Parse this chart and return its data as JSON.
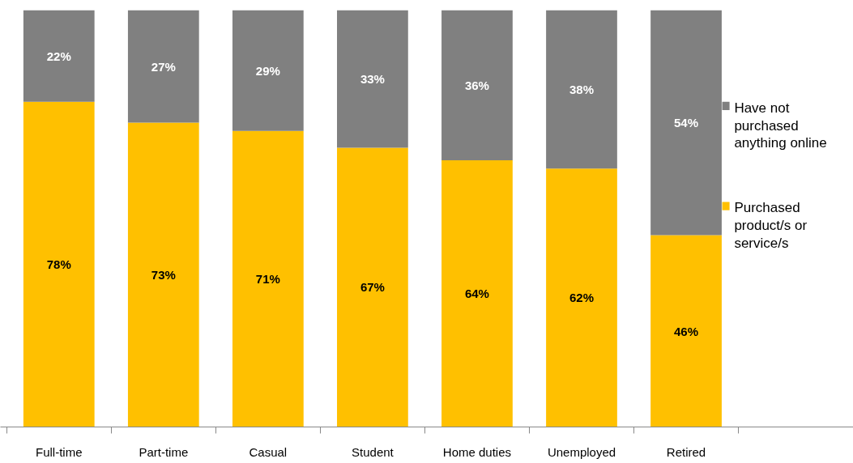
{
  "chart_data": {
    "type": "bar",
    "stacked": true,
    "categories": [
      "Full-time",
      "Part-time",
      "Casual",
      "Student",
      "Home duties",
      "Unemployed",
      "Retired"
    ],
    "series": [
      {
        "name": "Purchased product/s or service/s",
        "color": "#ffc000",
        "values": [
          78,
          73,
          71,
          67,
          64,
          62,
          46
        ],
        "value_labels": [
          "78%",
          "73%",
          "71%",
          "67%",
          "64%",
          "62%",
          "46%"
        ]
      },
      {
        "name": "Have not purchased anything online",
        "color": "#808080",
        "values": [
          22,
          27,
          29,
          33,
          36,
          38,
          54
        ],
        "value_labels": [
          "22%",
          "27%",
          "29%",
          "33%",
          "36%",
          "38%",
          "54%"
        ]
      }
    ],
    "legend": "right",
    "tick_labels": "x"
  }
}
